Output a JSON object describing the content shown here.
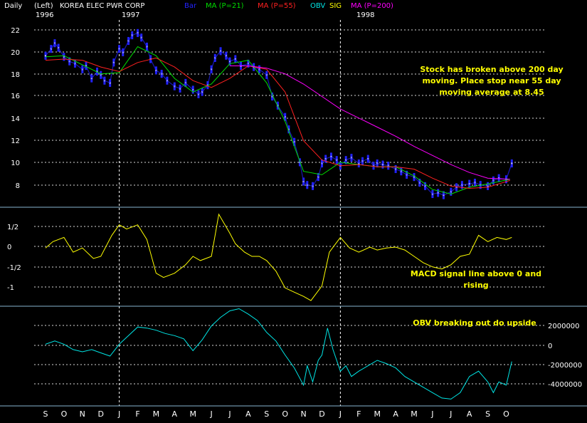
{
  "header": {
    "period": "Daily",
    "axis_side": "(Left)",
    "title": "KOREA ELEC PWR CORP",
    "legend": [
      {
        "label": "Bar",
        "color": "#2222ff"
      },
      {
        "label": "MA (P=21)",
        "color": "#00dd00"
      },
      {
        "label": "MA (P=55)",
        "color": "#ff2020"
      },
      {
        "label": "OBV",
        "color": "#00e5e5"
      },
      {
        "label": "SIG",
        "color": "#ffff00"
      },
      {
        "label": "MA (P=200)",
        "color": "#ff00ff"
      }
    ],
    "year_labels": [
      "1996",
      "1997",
      "1998"
    ]
  },
  "colors": {
    "background": "#000000",
    "text": "#ffffff",
    "grid": "#ffffff",
    "annotation": "#ffff00",
    "bar": "#2222ff",
    "bar_close": "#ffffff",
    "ma21": "#00dd00",
    "ma55": "#ff2020",
    "ma200": "#ff00ff",
    "macd": "#ffff00",
    "obv": "#00e5e5",
    "divider": "#87b3cf"
  },
  "months": [
    "S",
    "O",
    "N",
    "D",
    "J",
    "F",
    "M",
    "A",
    "M",
    "J",
    "J",
    "A",
    "S",
    "O",
    "N",
    "D",
    "J",
    "F",
    "M",
    "A",
    "M",
    "J",
    "J",
    "A",
    "S",
    "O"
  ],
  "chart_data": [
    {
      "type": "line",
      "panel": "price",
      "title": "KOREA ELEC PWR CORP",
      "y_ticks": [
        "22",
        "20",
        "18",
        "16",
        "14",
        "12",
        "10",
        "8"
      ],
      "ylim": [
        6.5,
        22.2
      ],
      "x_unit": "month index (0 = Sep 1996)",
      "xlim": [
        0,
        25.6
      ],
      "grid": true,
      "series": [
        {
          "name": "Bar",
          "x": [
            0,
            0.3,
            0.5,
            0.7,
            1,
            1.3,
            1.6,
            2,
            2.2,
            2.5,
            2.8,
            3,
            3.2,
            3.5,
            3.7,
            4,
            4.2,
            4.5,
            4.7,
            5,
            5.2,
            5.5,
            5.7,
            6,
            6.3,
            6.6,
            7,
            7.3,
            7.6,
            8,
            8.3,
            8.5,
            8.8,
            9,
            9.2,
            9.5,
            9.8,
            10,
            10.3,
            10.6,
            11,
            11.3,
            11.6,
            12,
            12.3,
            12.6,
            13,
            13.2,
            13.5,
            13.8,
            14,
            14.2,
            14.5,
            14.8,
            15,
            15.2,
            15.5,
            15.8,
            16,
            16.3,
            16.6,
            17,
            17.2,
            17.5,
            17.8,
            18,
            18.3,
            18.6,
            19,
            19.3,
            19.6,
            20,
            20.3,
            20.6,
            21,
            21.3,
            21.6,
            22,
            22.3,
            22.6,
            23,
            23.3,
            23.6,
            24,
            24.3,
            24.6,
            25,
            25.3
          ],
          "values": [
            19.8,
            20.4,
            20.9,
            20.5,
            19.7,
            19.3,
            19.1,
            18.6,
            18.9,
            17.8,
            18.4,
            18.1,
            17.6,
            17.4,
            19.2,
            20.4,
            20.1,
            21.1,
            21.6,
            21.8,
            21.4,
            20.6,
            19.5,
            18.5,
            18.2,
            17.6,
            17.1,
            16.9,
            17.4,
            16.8,
            16.4,
            16.6,
            17.2,
            18.6,
            19.6,
            20.2,
            19.8,
            19.3,
            19.5,
            18.9,
            19.1,
            18.8,
            18.6,
            18.1,
            16.2,
            15.4,
            14.4,
            13.3,
            12.2,
            10.4,
            8.7,
            8.4,
            8.3,
            9.1,
            10.3,
            10.7,
            10.9,
            10.6,
            10.1,
            10.6,
            10.8,
            10.3,
            10.5,
            10.7,
            10.1,
            10.3,
            10.2,
            10.1,
            9.8,
            9.6,
            9.3,
            9.1,
            8.6,
            8.3,
            7.6,
            7.7,
            7.5,
            7.8,
            8.2,
            8.4,
            8.5,
            8.6,
            8.4,
            8.3,
            8.8,
            9.0,
            8.9,
            10.3
          ]
        },
        {
          "name": "MA (P=21)",
          "x": [
            0,
            1,
            2,
            3,
            4,
            5,
            6,
            7,
            8,
            9,
            10,
            11,
            12,
            13,
            14,
            15,
            16,
            17,
            18,
            19,
            20,
            21,
            22,
            23,
            24,
            25.2
          ],
          "values": [
            19.7,
            19.8,
            19.0,
            18.2,
            18.3,
            20.6,
            19.8,
            17.8,
            16.6,
            17.3,
            19.1,
            19.4,
            17.4,
            14.0,
            9.6,
            9.3,
            10.4,
            10.2,
            10.0,
            10.0,
            9.2,
            8.0,
            7.6,
            8.2,
            8.5,
            8.9
          ]
        },
        {
          "name": "MA (P=55)",
          "x": [
            0,
            1,
            2,
            3,
            4,
            5,
            6,
            7,
            8,
            9,
            10,
            11,
            12,
            13,
            14,
            15,
            16,
            17,
            18,
            19,
            20,
            21,
            22,
            23,
            24,
            25.2
          ],
          "values": [
            19.4,
            19.5,
            19.4,
            18.8,
            18.4,
            19.2,
            19.6,
            18.8,
            17.6,
            17.0,
            17.8,
            18.9,
            18.6,
            16.6,
            12.3,
            10.6,
            10.1,
            10.2,
            10.0,
            10.0,
            9.8,
            9.0,
            8.3,
            8.1,
            8.2,
            8.8
          ]
        },
        {
          "name": "MA (P=200)",
          "x": [
            10,
            11,
            12,
            13,
            14,
            15,
            16,
            17,
            18,
            19,
            20,
            21,
            22,
            23,
            24,
            25.2
          ],
          "values": [
            18.9,
            18.9,
            18.7,
            18.2,
            17.3,
            16.2,
            15.1,
            14.3,
            13.5,
            12.7,
            11.8,
            11.0,
            10.2,
            9.5,
            9.0,
            8.9
          ]
        }
      ]
    },
    {
      "type": "line",
      "panel": "macd",
      "y_ticks": [
        "1/2",
        "0",
        "-1/2",
        "-1"
      ],
      "ylim": [
        -1.35,
        0.95
      ],
      "xlim": [
        0,
        25.6
      ],
      "grid": true,
      "series": [
        {
          "name": "SIG",
          "x": [
            0,
            0.4,
            1,
            1.5,
            2,
            2.6,
            3,
            3.6,
            4,
            4.4,
            5,
            5.5,
            6,
            6.4,
            7,
            7.6,
            8,
            8.4,
            9,
            9.4,
            10,
            10.3,
            10.8,
            11.2,
            11.6,
            12,
            12.5,
            13,
            13.5,
            14,
            14.4,
            15,
            15.4,
            16,
            16.5,
            17,
            17.6,
            18,
            18.5,
            19,
            19.5,
            20,
            20.5,
            21,
            21.5,
            22,
            22.5,
            23,
            23.5,
            24,
            24.5,
            25,
            25.3
          ],
          "values": [
            0,
            0.15,
            0.25,
            -0.1,
            0,
            -0.25,
            -0.2,
            0.3,
            0.55,
            0.45,
            0.55,
            0.2,
            -0.6,
            -0.7,
            -0.6,
            -0.4,
            -0.2,
            -0.3,
            -0.2,
            0.8,
            0.35,
            0.1,
            -0.1,
            -0.2,
            -0.2,
            -0.3,
            -0.55,
            -0.95,
            -1.05,
            -1.15,
            -1.25,
            -0.9,
            -0.1,
            0.25,
            0.0,
            -0.1,
            0.02,
            -0.05,
            0.0,
            0.02,
            -0.05,
            -0.2,
            -0.35,
            -0.45,
            -0.5,
            -0.4,
            -0.2,
            -0.15,
            0.3,
            0.15,
            0.25,
            0.2,
            0.25
          ]
        }
      ]
    },
    {
      "type": "line",
      "panel": "obv",
      "y_ticks": [
        "2000000",
        "0",
        "-2000000",
        "-4000000"
      ],
      "ylim": [
        -5600000,
        3400000
      ],
      "xlim": [
        0,
        25.6
      ],
      "grid": true,
      "series": [
        {
          "name": "OBV",
          "x": [
            0,
            0.5,
            1,
            1.5,
            2,
            2.5,
            3,
            3.5,
            4,
            4.5,
            5,
            5.5,
            6,
            6.5,
            7,
            7.5,
            8,
            8.5,
            9,
            9.5,
            10,
            10.5,
            11,
            11.5,
            12,
            12.5,
            13,
            13.5,
            14,
            14.2,
            14.5,
            14.8,
            15,
            15.3,
            15.6,
            16,
            16.3,
            16.6,
            17,
            17.5,
            18,
            18.5,
            19,
            19.5,
            20,
            20.5,
            21,
            21.5,
            22,
            22.5,
            23,
            23.5,
            24,
            24.3,
            24.6,
            25,
            25.3
          ],
          "values": [
            0,
            300000,
            0,
            -500000,
            -700000,
            -500000,
            -800000,
            -1100000,
            0,
            800000,
            1600000,
            1500000,
            1300000,
            1000000,
            800000,
            500000,
            -600000,
            400000,
            1700000,
            2500000,
            3100000,
            3300000,
            2800000,
            2200000,
            1100000,
            300000,
            -1000000,
            -2200000,
            -3800000,
            -2000000,
            -3500000,
            -1500000,
            -1000000,
            1500000,
            -500000,
            -2500000,
            -2000000,
            -3000000,
            -2500000,
            -2000000,
            -1500000,
            -1800000,
            -2200000,
            -3000000,
            -3500000,
            -4000000,
            -4500000,
            -5000000,
            -5100000,
            -4500000,
            -3000000,
            -2500000,
            -3500000,
            -4500000,
            -3500000,
            -3800000,
            -1600000
          ]
        }
      ]
    }
  ],
  "annotations": {
    "price": [
      "Stock has broken above 200 day",
      "moving.  Place stop near 55 day",
      "moving average at 8.45"
    ],
    "macd": [
      "MACD signal line above 0 and",
      "rising"
    ],
    "obv": [
      "OBV breaking out do upside"
    ]
  }
}
